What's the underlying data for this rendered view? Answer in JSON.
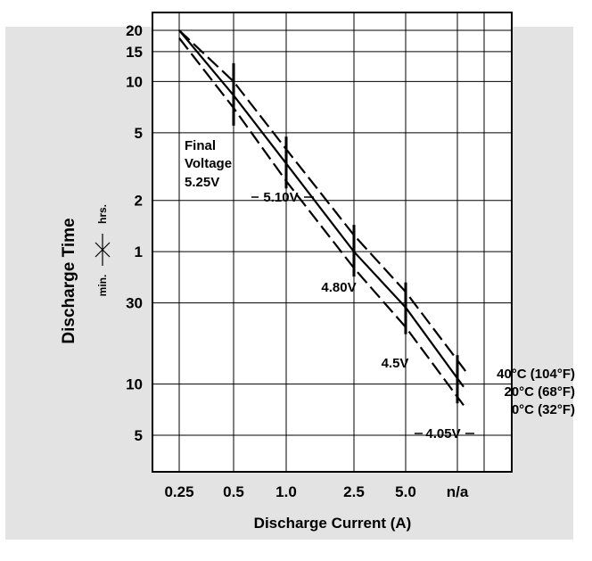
{
  "title_fragment": "",
  "chart_data": {
    "type": "line",
    "title": "",
    "xlabel": "Discharge Current (A)",
    "ylabel": "Discharge Time",
    "y_unit_markers": {
      "upper": "hrs.",
      "lower": "min."
    },
    "x_ticks": [
      "0.25",
      "0.5",
      "1.0",
      "2.5",
      "5.0",
      "n/a"
    ],
    "y_ticks_hours": [
      "20",
      "15",
      "10",
      "5",
      "2",
      "1"
    ],
    "y_ticks_minutes": [
      "30",
      "10",
      "5"
    ],
    "grid": true,
    "annotations": {
      "final_voltage_caption": [
        "Final",
        "Voltage",
        "5.25V"
      ],
      "voltages": [
        "5.10V",
        "4.80V",
        "4.5V",
        "4.05V"
      ]
    },
    "series": [
      {
        "name": "40°C (104°F)",
        "style": "dashed",
        "x": [
          "0.25",
          "0.5",
          "1.0",
          "2.5",
          "5.0",
          "n/a"
        ],
        "y_hours": [
          20,
          10,
          4.0,
          1.25,
          0.58,
          0.23
        ]
      },
      {
        "name": "20°C (68°F)",
        "style": "solid",
        "x": [
          "0.25",
          "0.5",
          "1.0",
          "2.5",
          "5.0",
          "n/a"
        ],
        "y_hours": [
          20,
          8.3,
          3.3,
          1.0,
          0.47,
          0.18
        ]
      },
      {
        "name": "0°C (32°F)",
        "style": "dashed",
        "x": [
          "0.25",
          "0.5",
          "1.0",
          "2.5",
          "5.0",
          "n/a"
        ],
        "y_hours": [
          18,
          7.0,
          2.6,
          0.8,
          0.36,
          0.14
        ]
      }
    ]
  },
  "colors": {
    "panel": "#e3e3e3",
    "line": "#000000",
    "background": "#ffffff"
  }
}
